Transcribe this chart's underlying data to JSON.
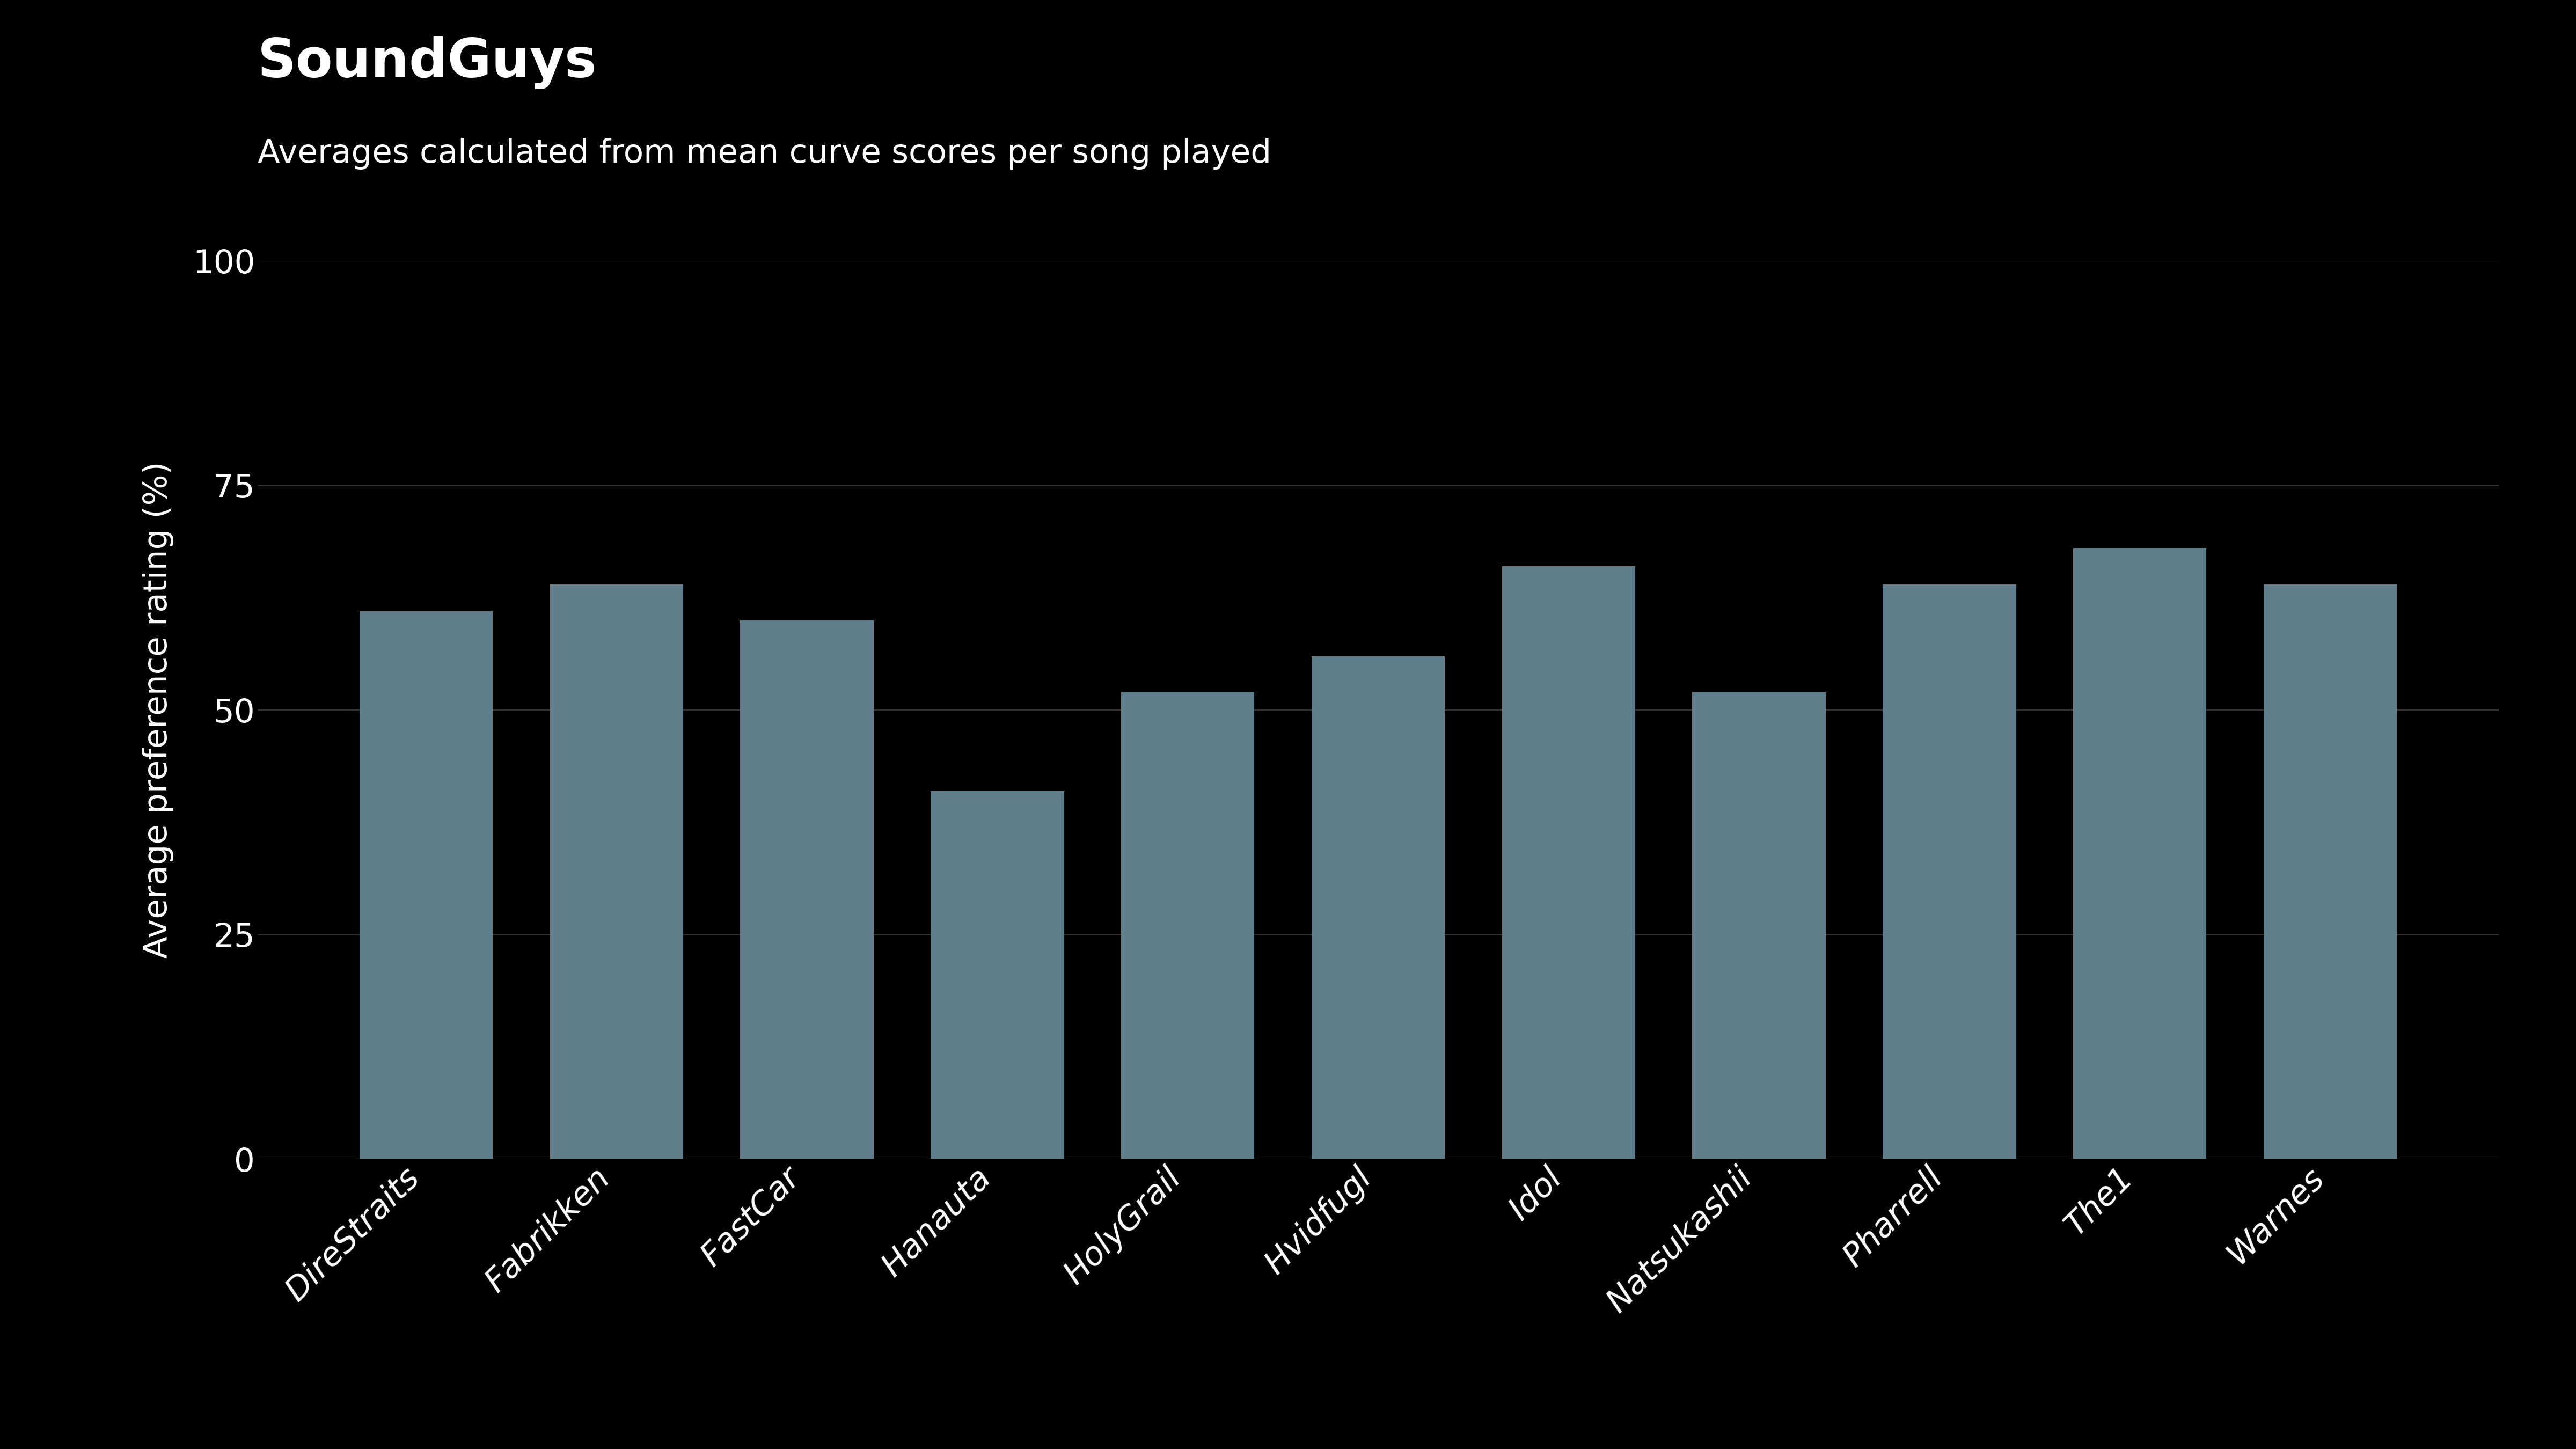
{
  "title": "SoundGuys",
  "subtitle": "Averages calculated from mean curve scores per song played",
  "categories": [
    "DireStraits",
    "Fabrikken",
    "FastCar",
    "Hanauta",
    "HolyGrail",
    "Hvidfugl",
    "Idol",
    "Natsukashii",
    "Pharrell",
    "The1",
    "Warnes"
  ],
  "values": [
    61,
    64,
    60,
    41,
    52,
    56,
    66,
    52,
    64,
    68,
    64
  ],
  "bar_color": "#607d8b",
  "background_color": "#000000",
  "text_color": "#ffffff",
  "ylabel": "Average preference rating (%)",
  "ylim": [
    0,
    100
  ],
  "yticks": [
    0,
    25,
    50,
    75,
    100
  ],
  "grid_color": "#333333",
  "title_fontsize": 72,
  "subtitle_fontsize": 44,
  "ylabel_fontsize": 44,
  "ytick_fontsize": 44,
  "xtick_fontsize": 44,
  "bar_width": 0.7
}
